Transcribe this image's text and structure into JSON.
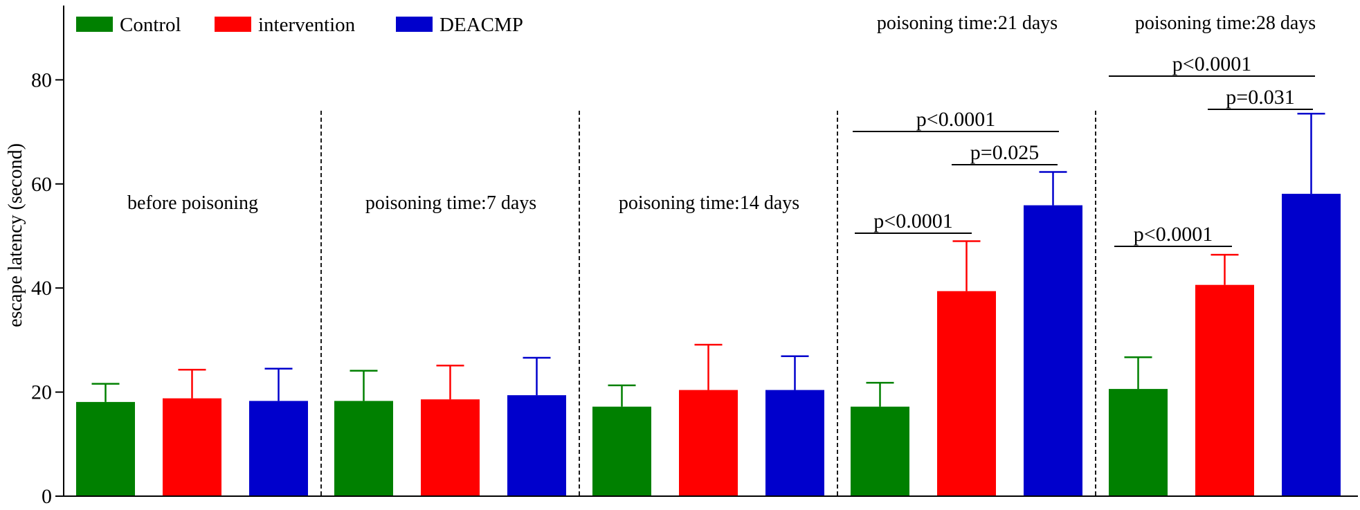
{
  "chart_data": {
    "type": "bar",
    "ylabel": "escape latency (second)",
    "ylim": [
      0,
      95
    ],
    "y_ticks": [
      0,
      20,
      40,
      60,
      80
    ],
    "legend": {
      "placement": "top-left",
      "entries": [
        {
          "label": "Control",
          "color": "#008000"
        },
        {
          "label": "intervention",
          "color": "#ff0000"
        },
        {
          "label": "DEACMP",
          "color": "#0000cc"
        }
      ]
    },
    "series": [
      {
        "name": "Control",
        "color": "#008000"
      },
      {
        "name": "intervention",
        "color": "#ff0000"
      },
      {
        "name": "DEACMP",
        "color": "#0000cc"
      }
    ],
    "groups": [
      {
        "label": "before poisoning",
        "values": [
          18.1,
          18.8,
          18.3
        ],
        "errors": [
          3.5,
          5.5,
          6.2
        ],
        "comparisons": []
      },
      {
        "label": "poisoning time:7 days",
        "values": [
          18.3,
          18.6,
          19.4
        ],
        "errors": [
          5.8,
          6.5,
          7.2
        ],
        "comparisons": []
      },
      {
        "label": "poisoning time:14 days",
        "values": [
          17.2,
          20.4,
          20.4
        ],
        "errors": [
          4.1,
          8.7,
          6.5
        ],
        "comparisons": []
      },
      {
        "label": "poisoning time:21 days",
        "values": [
          17.2,
          39.4,
          55.9
        ],
        "errors": [
          4.6,
          9.6,
          6.4
        ],
        "comparisons": [
          {
            "from": 0,
            "to": 1,
            "label": "p<0.0001"
          },
          {
            "from": 1,
            "to": 2,
            "label": "p=0.025"
          },
          {
            "from": 0,
            "to": 2,
            "label": "p<0.0001"
          }
        ]
      },
      {
        "label": "poisoning time:28 days",
        "values": [
          20.6,
          40.6,
          58.1
        ],
        "errors": [
          6.1,
          5.8,
          15.4
        ],
        "comparisons": [
          {
            "from": 0,
            "to": 1,
            "label": "p<0.0001"
          },
          {
            "from": 1,
            "to": 2,
            "label": "p=0.031"
          },
          {
            "from": 0,
            "to": 2,
            "label": "p<0.0001"
          }
        ]
      }
    ]
  }
}
